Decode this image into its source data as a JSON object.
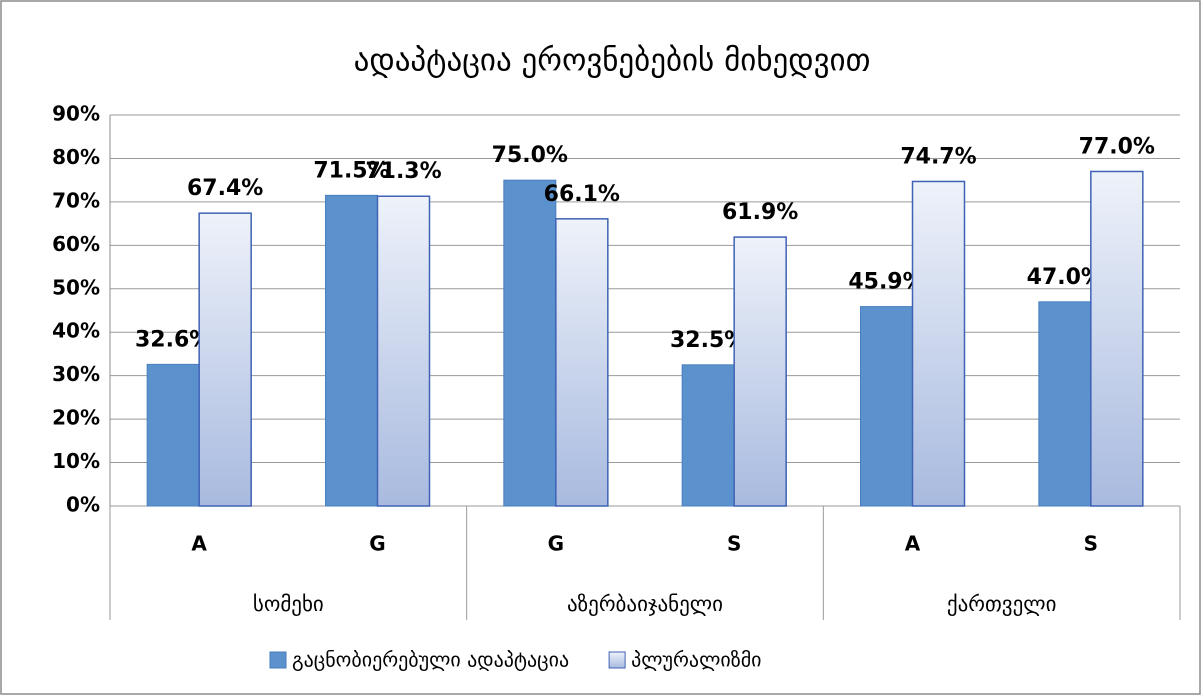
{
  "chart_data": {
    "type": "bar",
    "title": "ადაპტაცია ეროვნებების მიხედვით",
    "categories": [
      "A",
      "G",
      "G",
      "S",
      "A",
      "S"
    ],
    "groups": [
      "სომეხი",
      "აზერბაიჯანელი",
      "ქართველი"
    ],
    "series": [
      {
        "name": "გაცნობიერებული ადაპტაცია",
        "color": "#5b92cd",
        "values": [
          32.6,
          71.5,
          75.0,
          32.5,
          45.9,
          47.0
        ],
        "value_labels": [
          "32.6%",
          "71.5%",
          "75.0%",
          "32.5%",
          "45.9%",
          "47.0%"
        ]
      },
      {
        "name": "პლურალიზმი",
        "color": "#a8badf",
        "values": [
          67.4,
          71.3,
          66.1,
          61.9,
          74.7,
          77.0
        ],
        "value_labels": [
          "67.4%",
          "71.3%",
          "66.1%",
          "61.9%",
          "74.7%",
          "77.0%"
        ]
      }
    ],
    "ylim": [
      0,
      90
    ],
    "yticks": [
      {
        "value": 0,
        "label": "0%"
      },
      {
        "value": 10,
        "label": "10%"
      },
      {
        "value": 20,
        "label": "20%"
      },
      {
        "value": 30,
        "label": "30%"
      },
      {
        "value": 40,
        "label": "40%"
      },
      {
        "value": 50,
        "label": "50%"
      },
      {
        "value": 60,
        "label": "60%"
      },
      {
        "value": 70,
        "label": "70%"
      },
      {
        "value": 80,
        "label": "80%"
      },
      {
        "value": 90,
        "label": "90%"
      }
    ],
    "grid": true,
    "legend": "bottom"
  }
}
